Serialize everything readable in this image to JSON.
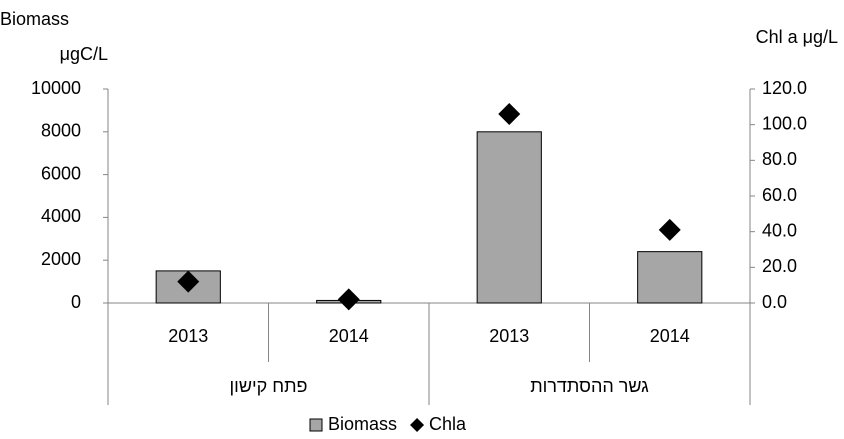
{
  "chart_data": {
    "type": "bar",
    "y_label": [
      "Biomass",
      "μgC/L"
    ],
    "y2_label": "Chl a μg/L",
    "category_groups": [
      {
        "name": "פתח קישון",
        "categories": [
          "2013",
          "2014"
        ]
      },
      {
        "name": "גשר ההסתדרות",
        "categories": [
          "2013",
          "2014"
        ]
      }
    ],
    "series": [
      {
        "name": "Biomass",
        "type": "bar",
        "color": "#a6a6a6",
        "values": [
          1500,
          120,
          8000,
          2400
        ]
      },
      {
        "name": "Chla",
        "type": "scatter",
        "axis": "y2",
        "color": "#000000",
        "values": [
          12,
          2,
          106,
          41
        ]
      }
    ],
    "ylim": [
      0,
      10000
    ],
    "yticks": [
      0,
      2000,
      4000,
      6000,
      8000,
      10000
    ],
    "y2lim": [
      0,
      120
    ],
    "y2ticks": [
      {
        "value": 0,
        "label": "0.0"
      },
      {
        "value": 20,
        "label": "20.0"
      },
      {
        "value": 40,
        "label": "40.0"
      },
      {
        "value": 60,
        "label": "60.0"
      },
      {
        "value": 80,
        "label": "80.0"
      },
      {
        "value": 100,
        "label": "100.0"
      },
      {
        "value": 120,
        "label": "120.0"
      }
    ],
    "grid": false,
    "legend": "bottom"
  }
}
